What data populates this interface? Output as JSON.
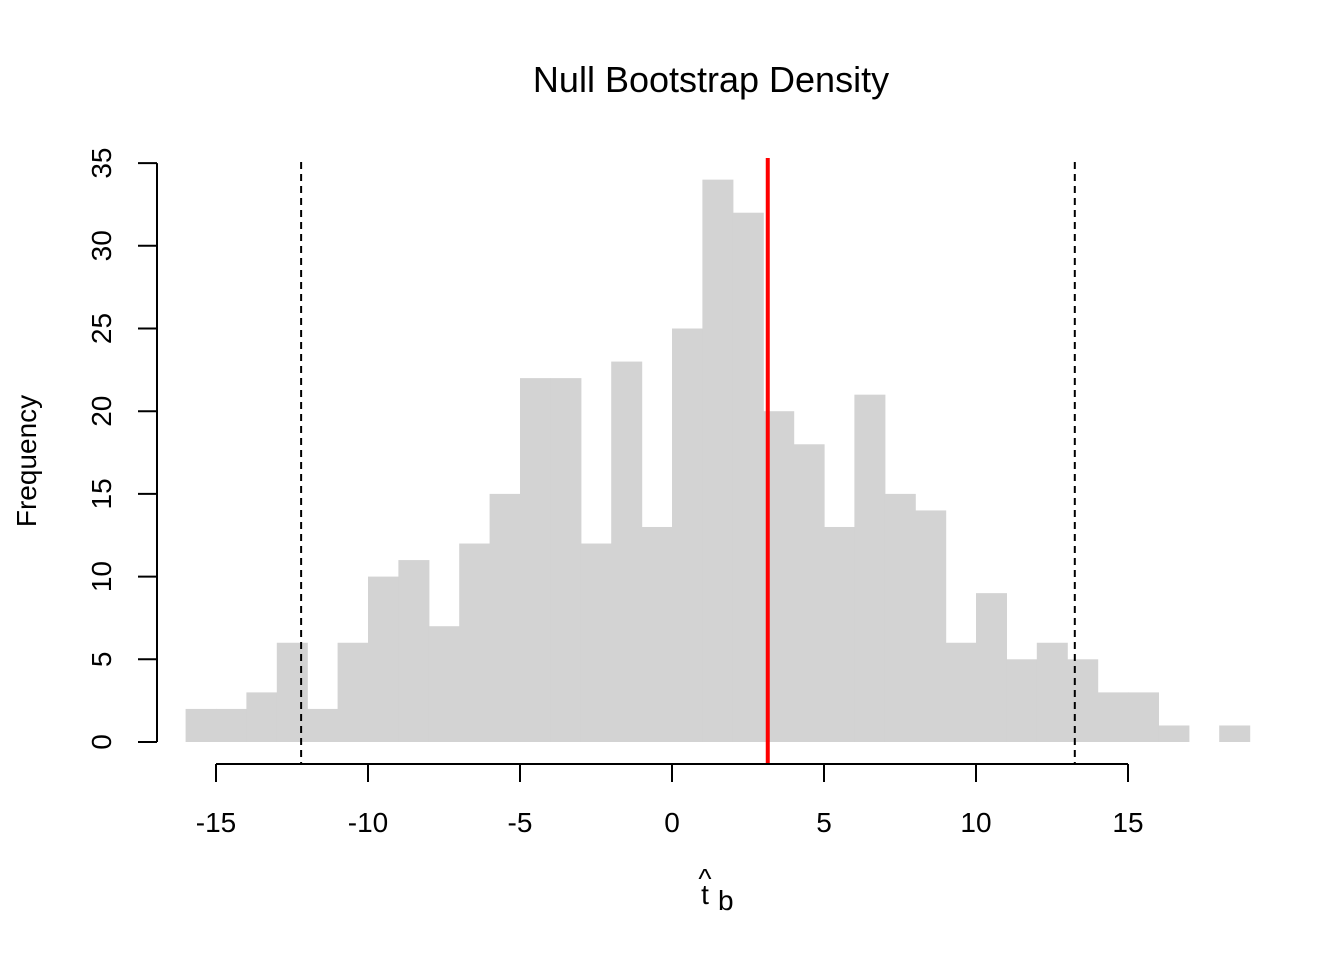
{
  "chart_data": {
    "type": "bar",
    "title": "Null Bootstrap Density",
    "xlabel_base": "t",
    "xlabel_hat": "^",
    "xlabel_sub": "b",
    "ylabel": "Frequency",
    "bin_width": 1,
    "bin_starts": [
      -16,
      -15,
      -14,
      -13,
      -12,
      -11,
      -10,
      -9,
      -8,
      -7,
      -6,
      -5,
      -4,
      -3,
      -2,
      -1,
      0,
      1,
      2,
      3,
      4,
      5,
      6,
      7,
      8,
      9,
      10,
      11,
      12,
      13,
      14,
      15,
      16,
      17,
      18
    ],
    "values": [
      2,
      2,
      3,
      6,
      2,
      6,
      10,
      11,
      7,
      12,
      15,
      22,
      22,
      12,
      23,
      13,
      25,
      34,
      32,
      20,
      18,
      13,
      21,
      15,
      14,
      6,
      9,
      5,
      6,
      5,
      3,
      3,
      1,
      0,
      1
    ],
    "xlim": [
      -16,
      19
    ],
    "ylim": [
      0,
      35
    ],
    "x_ticks": [
      -15,
      -10,
      -5,
      0,
      5,
      10,
      15
    ],
    "x_tick_labels": [
      "-15",
      "-10",
      "-5",
      "0",
      "5",
      "10",
      "15"
    ],
    "y_ticks": [
      0,
      5,
      10,
      15,
      20,
      25,
      30,
      35
    ],
    "y_tick_labels": [
      "0",
      "5",
      "10",
      "15",
      "20",
      "25",
      "30",
      "35"
    ],
    "bar_color": "#d3d3d3",
    "observed_line": {
      "x": 3.15,
      "color": "#ff0000"
    },
    "critical_lines": [
      {
        "x": -12.2,
        "style": "dashed"
      },
      {
        "x": 13.25,
        "style": "dashed"
      }
    ],
    "grid": false,
    "legend": "none"
  }
}
